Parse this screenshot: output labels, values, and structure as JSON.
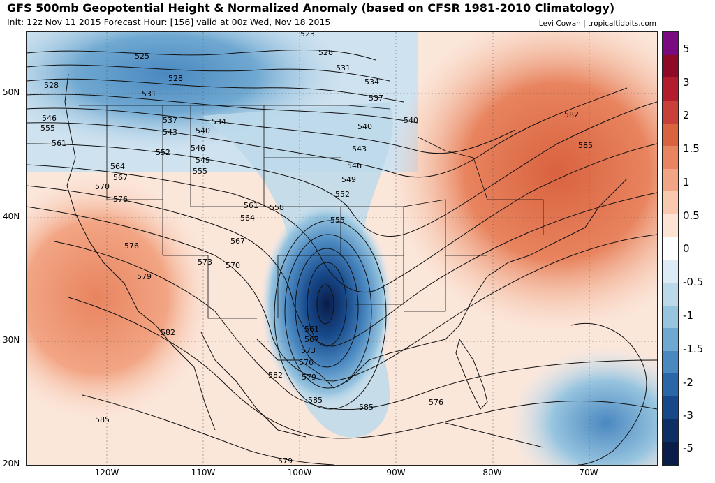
{
  "header": {
    "title": "GFS 500mb Geopotential Height & Normalized Anomaly (based on CFSR 1981-2010 Climatology)",
    "subtitle": "Init: 12z Nov 11 2015   Forecast Hour: [156]   valid at 00z Wed, Nov 18 2015",
    "credit": "Levi Cowan | tropicaltidbits.com"
  },
  "axes": {
    "lat_labels": [
      "50N",
      "40N",
      "30N",
      "20N"
    ],
    "lon_labels": [
      "120W",
      "110W",
      "100W",
      "90W",
      "80W",
      "70W"
    ]
  },
  "colorbar": {
    "labels": [
      "5",
      "3",
      "2",
      "1.5",
      "1",
      "0.5",
      "0",
      "-0.5",
      "-1",
      "-1.5",
      "-2",
      "-3",
      "-5"
    ],
    "colors": [
      "#7a0a80",
      "#8e0a26",
      "#b21c2d",
      "#c9403a",
      "#d9623f",
      "#e8845f",
      "#f2a584",
      "#f8c9ae",
      "#fce3d4",
      "#ffffff",
      "#dcebf5",
      "#bcd9ea",
      "#97c4df",
      "#6fa8d1",
      "#4a88c0",
      "#2a67a8",
      "#17498a",
      "#0d2f66",
      "#0a1c4a"
    ]
  },
  "contour_labels": [
    "525",
    "528",
    "528",
    "531",
    "534",
    "537",
    "540",
    "543",
    "546",
    "549",
    "552",
    "555",
    "558",
    "561",
    "564",
    "567",
    "570",
    "573",
    "576",
    "579",
    "582",
    "585",
    "523",
    "528",
    "531",
    "534",
    "537",
    "540",
    "543",
    "546",
    "549",
    "552",
    "555",
    "558",
    "561",
    "564",
    "567",
    "570",
    "573",
    "576",
    "579",
    "582",
    "585",
    "540",
    "546",
    "555",
    "561",
    "564",
    "567",
    "570",
    "576",
    "579",
    "582",
    "585",
    "552",
    "555",
    "561",
    "567",
    "573",
    "576",
    "579",
    "582",
    "585",
    "585",
    "576",
    "579",
    "582",
    "585"
  ]
}
